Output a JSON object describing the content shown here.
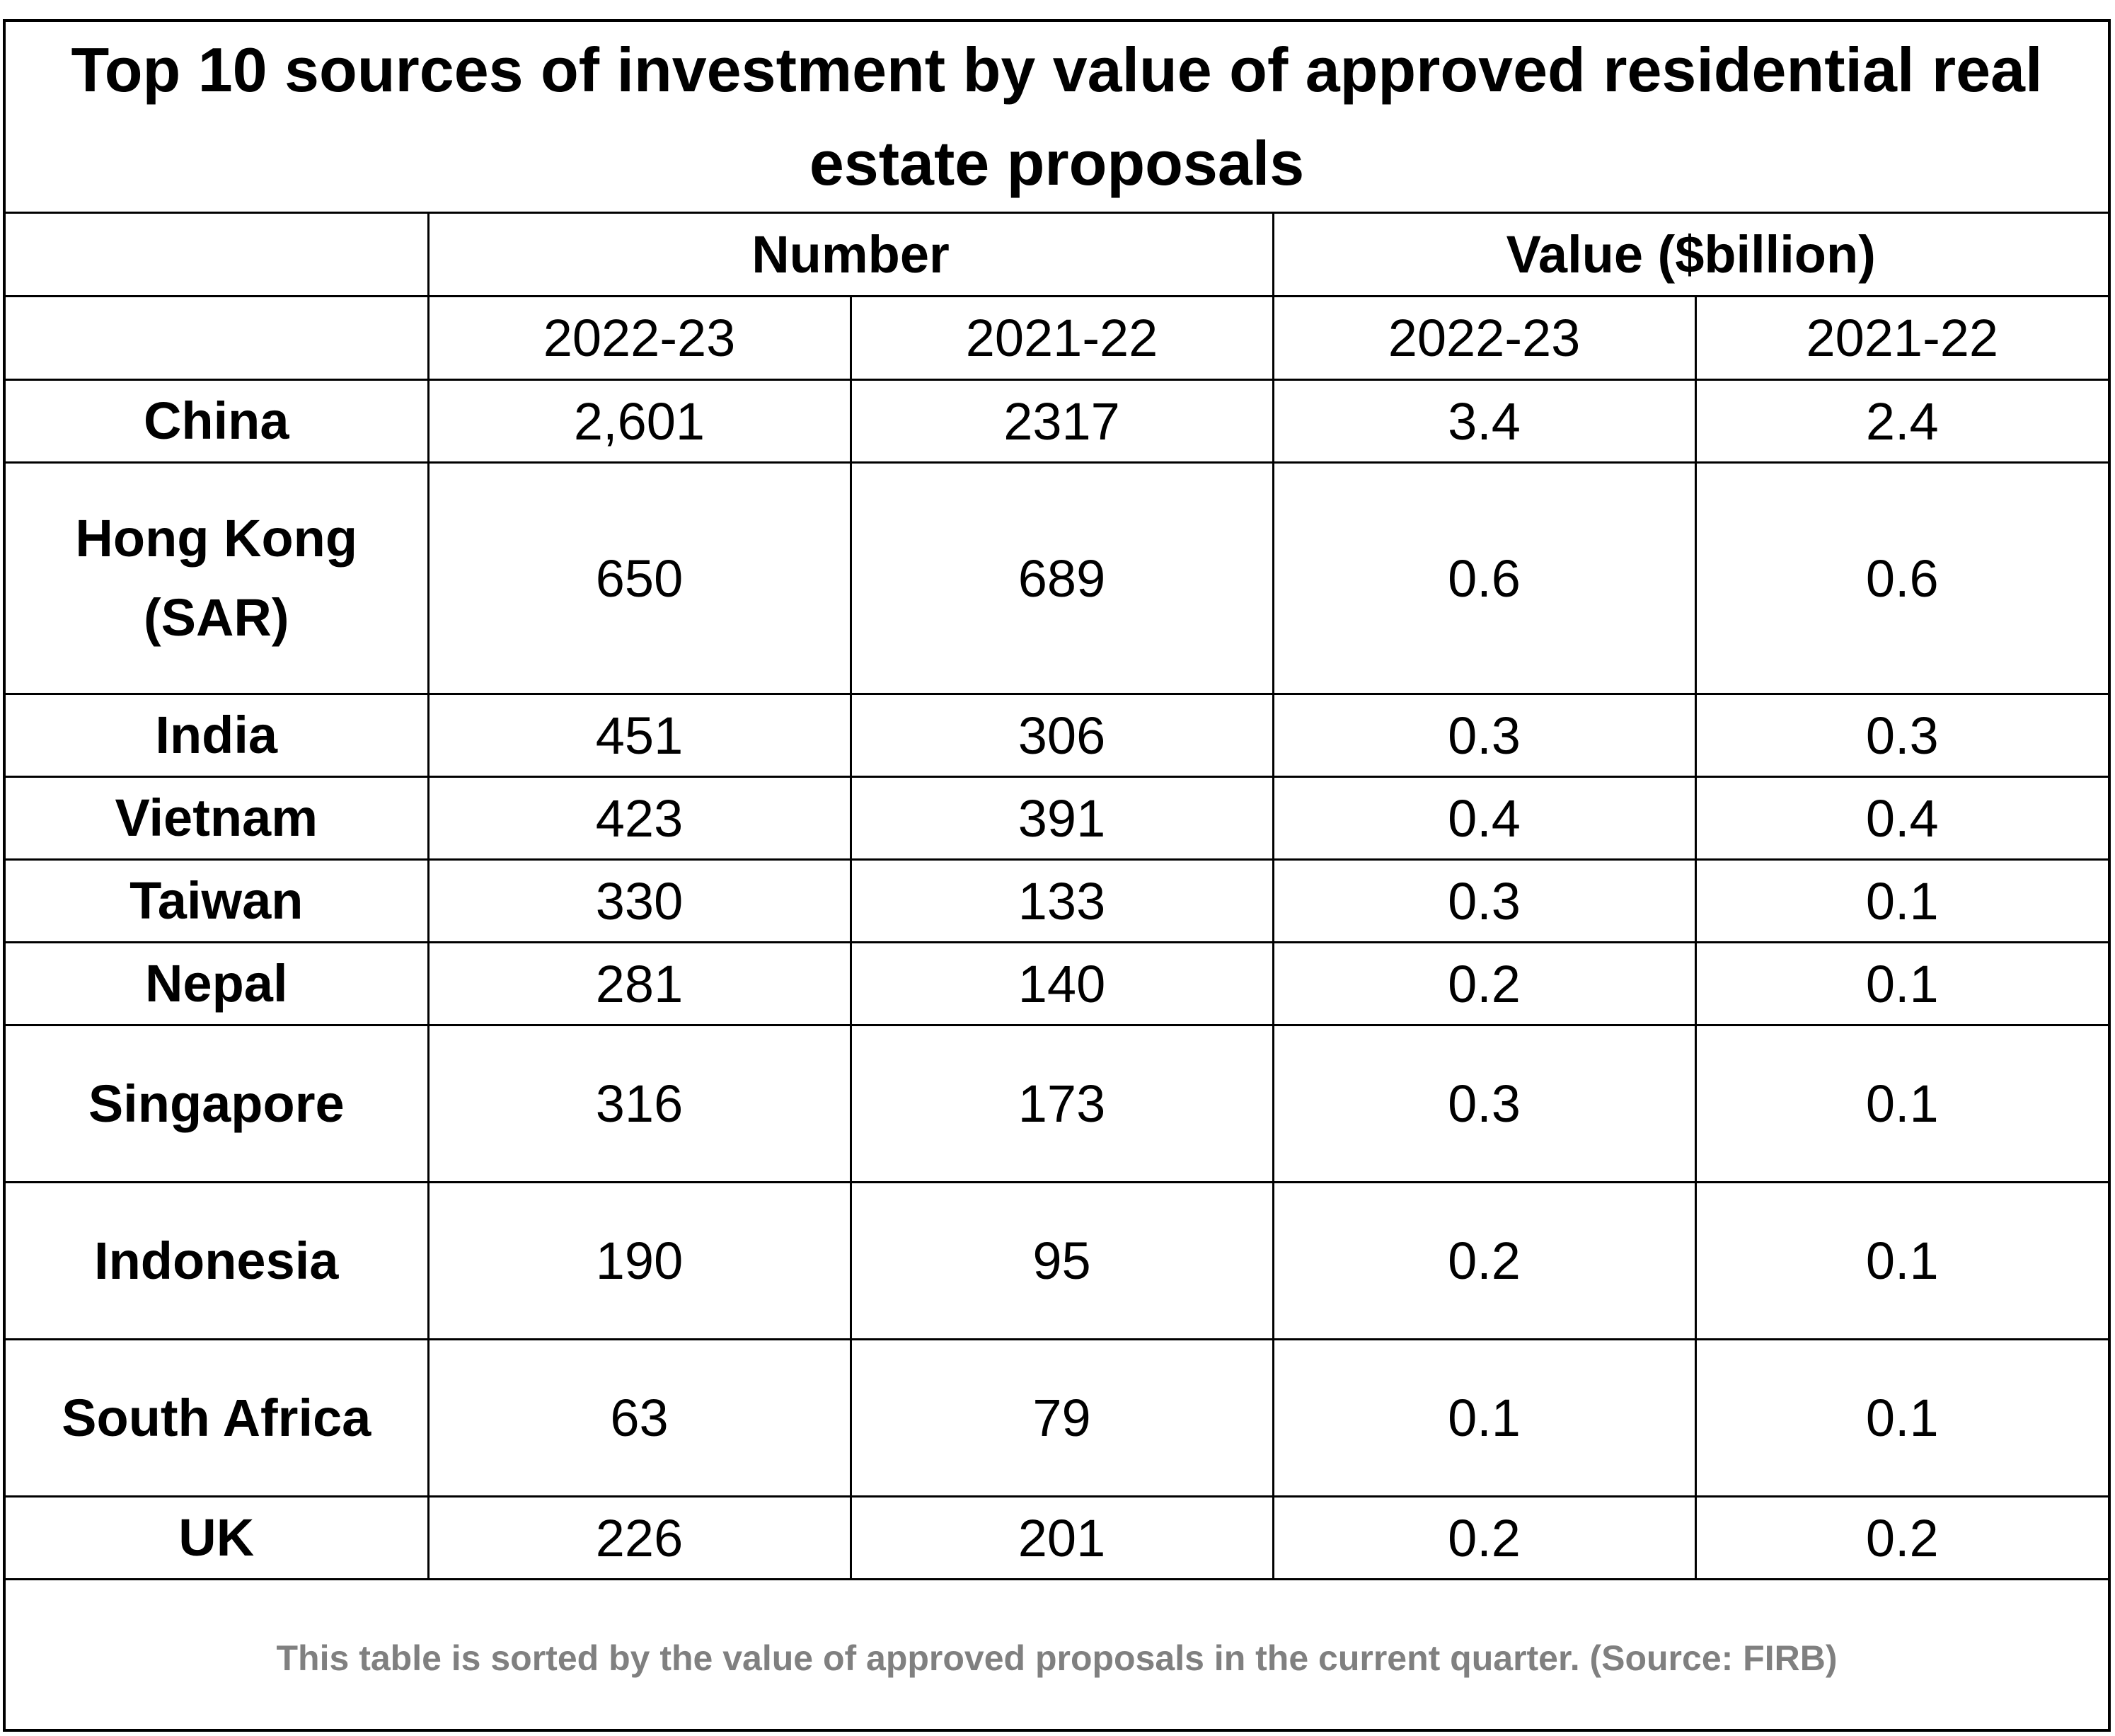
{
  "title": "Top 10 sources of investment by value of approved residential real estate proposals",
  "header": {
    "number_label": "Number",
    "value_label": "Value ($billion)",
    "years": [
      "2022-23",
      "2021-22",
      "2022-23",
      "2021-22"
    ]
  },
  "rows": [
    {
      "country": "China",
      "num_2022_23": "2,601",
      "num_2021_22": "2317",
      "val_2022_23": "3.4",
      "val_2021_22": "2.4"
    },
    {
      "country": "Hong Kong (SAR)",
      "num_2022_23": "650",
      "num_2021_22": "689",
      "val_2022_23": "0.6",
      "val_2021_22": "0.6"
    },
    {
      "country": "India",
      "num_2022_23": "451",
      "num_2021_22": "306",
      "val_2022_23": "0.3",
      "val_2021_22": "0.3"
    },
    {
      "country": "Vietnam",
      "num_2022_23": "423",
      "num_2021_22": "391",
      "val_2022_23": "0.4",
      "val_2021_22": "0.4"
    },
    {
      "country": "Taiwan",
      "num_2022_23": "330",
      "num_2021_22": "133",
      "val_2022_23": "0.3",
      "val_2021_22": "0.1"
    },
    {
      "country": "Nepal",
      "num_2022_23": "281",
      "num_2021_22": "140",
      "val_2022_23": "0.2",
      "val_2021_22": "0.1"
    },
    {
      "country": "Singapore",
      "num_2022_23": "316",
      "num_2021_22": "173",
      "val_2022_23": "0.3",
      "val_2021_22": "0.1"
    },
    {
      "country": "Indonesia",
      "num_2022_23": "190",
      "num_2021_22": "95",
      "val_2022_23": "0.2",
      "val_2021_22": "0.1"
    },
    {
      "country": "South Africa",
      "num_2022_23": "63",
      "num_2021_22": "79",
      "val_2022_23": "0.1",
      "val_2021_22": "0.1"
    },
    {
      "country": "UK",
      "num_2022_23": "226",
      "num_2021_22": "201",
      "val_2022_23": "0.2",
      "val_2021_22": "0.2"
    }
  ],
  "footer": "This table is sorted by the value of approved proposals in the current quarter. (Source: FIRB)",
  "colors": {
    "text": "#000000",
    "footer_text": "#808080",
    "border": "#000000",
    "background": "#ffffff"
  }
}
